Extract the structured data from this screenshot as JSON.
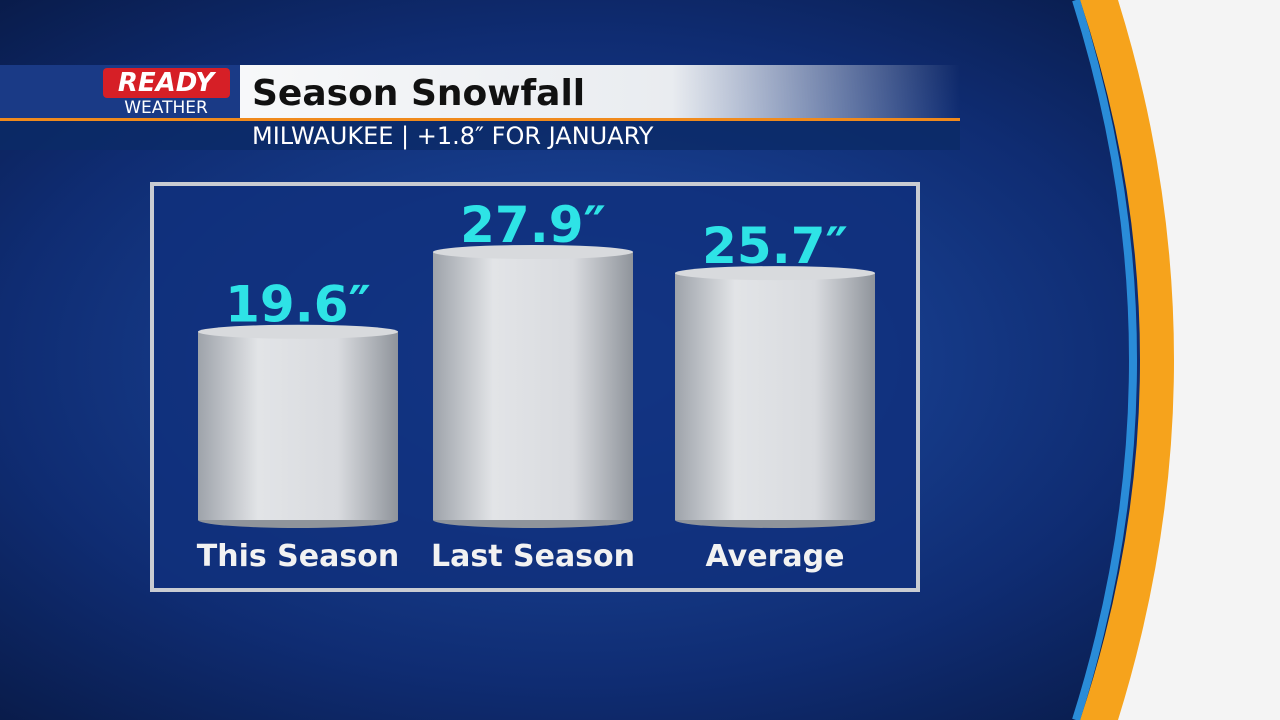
{
  "brand": [
    "READY",
    "WEATHER"
  ],
  "chart_data": {
    "type": "bar",
    "title": "Season Snowfall",
    "subtitle": "MILWAUKEE | +1.8″ FOR JANUARY",
    "categories": [
      "This Season",
      "Last Season",
      "Average"
    ],
    "values": [
      19.6,
      27.9,
      25.7
    ],
    "value_labels": [
      "19.6″",
      "27.9″",
      "25.7″"
    ],
    "color": "#d8dadd"
  }
}
